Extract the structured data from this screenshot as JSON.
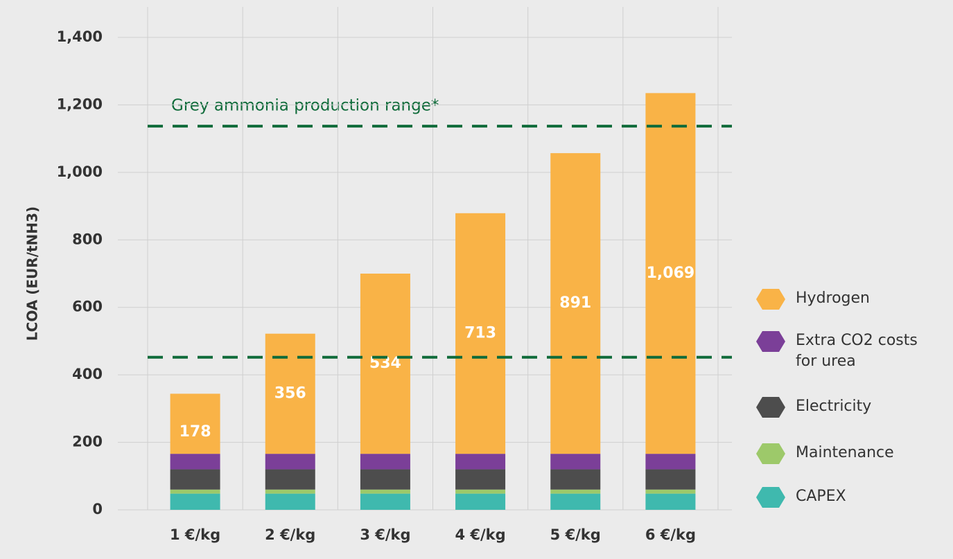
{
  "chart_data": {
    "type": "stacked_bar",
    "y_label": "LCOA (EUR/tNH3)",
    "categories": [
      "1 €/kg",
      "2 €/kg",
      "3 €/kg",
      "4 €/kg",
      "5 €/kg",
      "6 €/kg"
    ],
    "series": [
      {
        "name": "CAPEX",
        "color": "#3fb9ae",
        "values": [
          48,
          48,
          48,
          48,
          48,
          48
        ]
      },
      {
        "name": "Maintenance",
        "color": "#9dc96a",
        "values": [
          12,
          12,
          12,
          12,
          12,
          12
        ]
      },
      {
        "name": "Electricity",
        "color": "#4d4d4d",
        "values": [
          60,
          60,
          60,
          60,
          60,
          60
        ]
      },
      {
        "name": "Extra CO2 costs for urea",
        "color": "#7b3f98",
        "values": [
          46,
          46,
          46,
          46,
          46,
          46
        ]
      },
      {
        "name": "Hydrogen",
        "color": "#f9b347",
        "values": [
          178,
          356,
          534,
          713,
          891,
          1069
        ],
        "value_labels": [
          "178",
          "356",
          "534",
          "713",
          "891",
          "1,069"
        ]
      }
    ],
    "ylim": [
      0,
      1400
    ],
    "yticks": [
      0,
      200,
      400,
      600,
      800,
      {
        "value": 1000,
        "label": "1,000"
      },
      {
        "value": 1200,
        "label": "1,200"
      },
      {
        "value": 1400,
        "label": "1,400"
      }
    ],
    "grid": true,
    "reference_lines": [
      {
        "value": 1137
      },
      {
        "value": 452
      }
    ],
    "reference_color": "#0f6b3a",
    "annotation": "Grey ammonia production range*"
  }
}
